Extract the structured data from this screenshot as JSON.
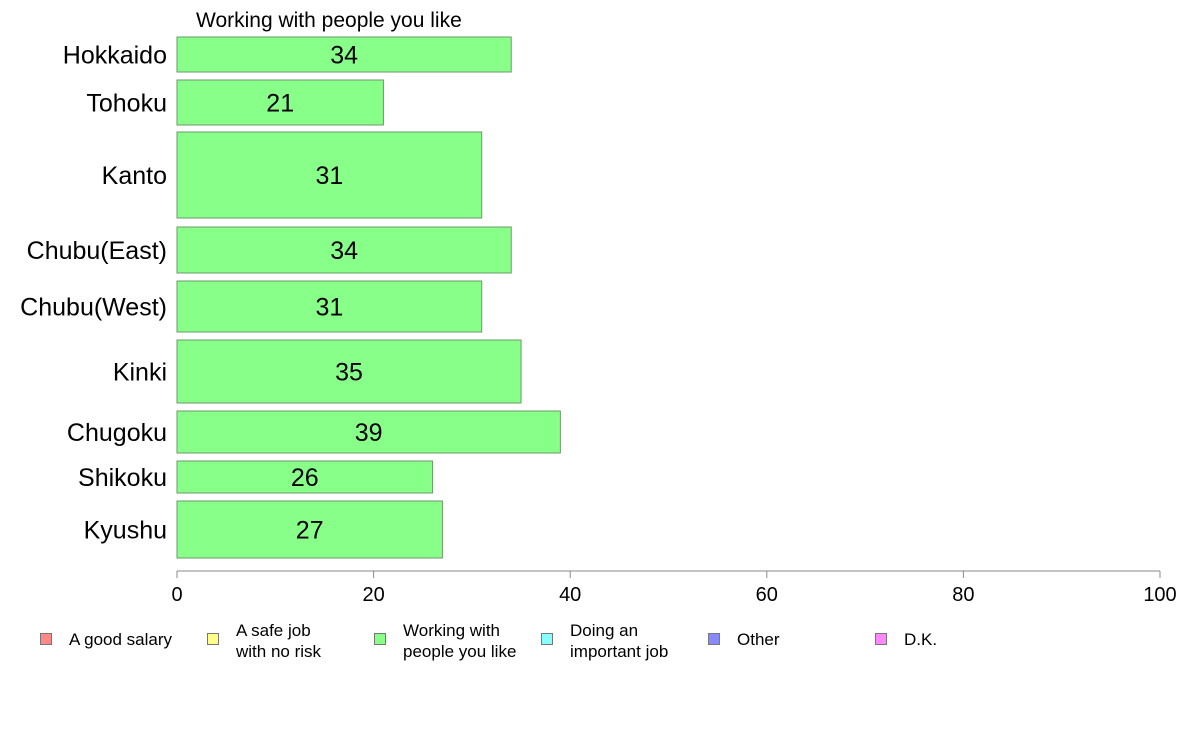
{
  "chart_data": {
    "type": "bar",
    "orientation": "horizontal",
    "title": "Working with people you like",
    "categories": [
      "Hokkaido",
      "Tohoku",
      "Kanto",
      "Chubu(East)",
      "Chubu(West)",
      "Kinki",
      "Chugoku",
      "Shikoku",
      "Kyushu"
    ],
    "series": [
      {
        "name": "Working with people you like",
        "values": [
          34,
          21,
          31,
          34,
          31,
          35,
          39,
          26,
          27
        ],
        "color": "#88ff88"
      }
    ],
    "value_labels": [
      "34",
      "21",
      "31",
      "34",
      "31",
      "35",
      "39",
      "26",
      "27"
    ],
    "xlim": [
      0,
      100
    ],
    "xticks": [
      0,
      20,
      40,
      60,
      80,
      100
    ],
    "xtick_labels": [
      "0",
      "20",
      "40",
      "60",
      "80",
      "100"
    ],
    "grid": false,
    "legend_position": "bottom",
    "legend": [
      {
        "label": "A good salary",
        "color": "#ff8888"
      },
      {
        "label": "A safe job\nwith no risk",
        "color": "#ffff88"
      },
      {
        "label": "Working with\npeople you like",
        "color": "#88ff88"
      },
      {
        "label": "Doing an\nimportant job",
        "color": "#88ffff"
      },
      {
        "label": "Other",
        "color": "#8888ff"
      },
      {
        "label": "D.K.",
        "color": "#ff88ff"
      }
    ]
  }
}
